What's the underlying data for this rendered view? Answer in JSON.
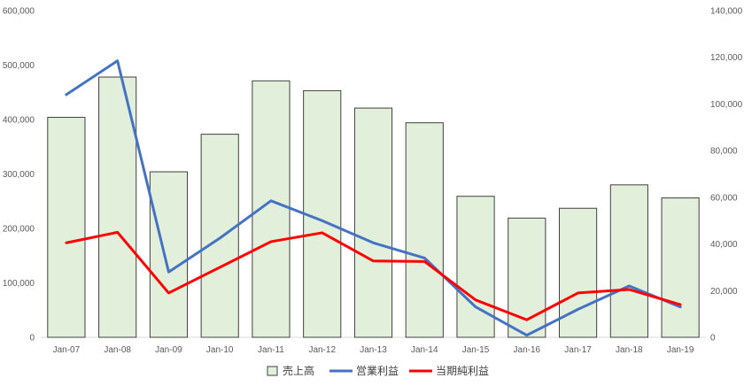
{
  "chart_data": {
    "type": "bar",
    "title": "",
    "xlabel": "",
    "ylabel": "",
    "categories": [
      "Jan-07",
      "Jan-08",
      "Jan-09",
      "Jan-10",
      "Jan-11",
      "Jan-12",
      "Jan-13",
      "Jan-14",
      "Jan-15",
      "Jan-16",
      "Jan-17",
      "Jan-18",
      "Jan-19"
    ],
    "series": [
      {
        "name": "売上高",
        "type": "bar",
        "axis": "left",
        "color": "#e2efda",
        "stroke": "#404040",
        "values": [
          404000,
          478000,
          304000,
          373000,
          471000,
          453000,
          421000,
          394000,
          259000,
          219000,
          237000,
          280000,
          256000
        ]
      },
      {
        "name": "営業利益",
        "type": "line",
        "axis": "right",
        "color": "#4472c4",
        "values": [
          104000,
          118500,
          28000,
          42500,
          58500,
          50000,
          40500,
          34000,
          13000,
          900,
          12000,
          22000,
          13000
        ]
      },
      {
        "name": "当期純利益",
        "type": "line",
        "axis": "right",
        "color": "#ff0000",
        "values": [
          40500,
          45000,
          19000,
          30000,
          41000,
          44800,
          32700,
          32500,
          16000,
          7500,
          19000,
          20500,
          14000
        ]
      }
    ],
    "y_left": {
      "min": 0,
      "max": 600000,
      "step": 100000,
      "ticks": [
        "0",
        "100,000",
        "200,000",
        "300,000",
        "400,000",
        "500,000",
        "600,000"
      ]
    },
    "y_right": {
      "min": 0,
      "max": 140000,
      "step": 20000,
      "ticks": [
        "0",
        "20,000",
        "40,000",
        "60,000",
        "80,000",
        "100,000",
        "120,000",
        "140,000"
      ]
    },
    "grid": false,
    "legend_position": "bottom"
  }
}
